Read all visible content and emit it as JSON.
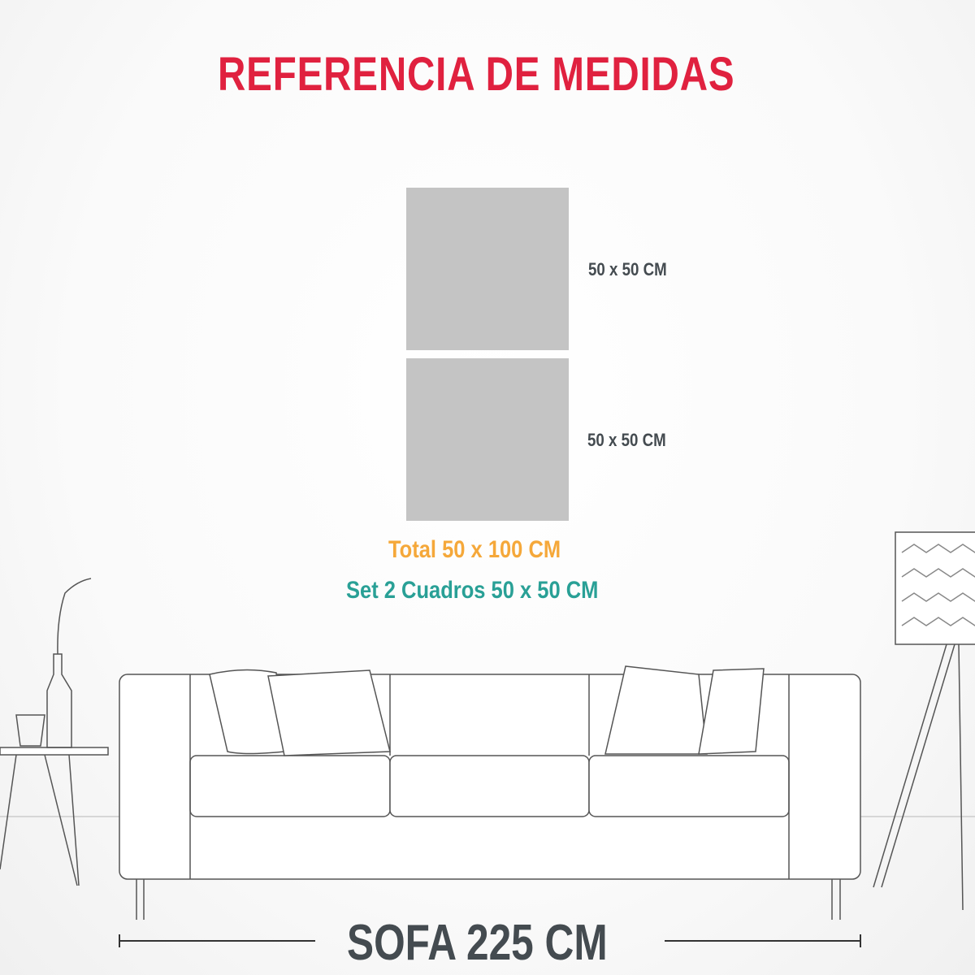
{
  "title": "REFERENCIA DE MEDIDAS",
  "panels": [
    {
      "label": "50 x 50 CM",
      "color": "#c4c4c4"
    },
    {
      "label": "50 x 50 CM",
      "color": "#c4c4c4"
    }
  ],
  "total": "Total 50 x 100 CM",
  "set": "Set 2 Cuadros 50 x 50 CM",
  "sofa": "SOFA 225 CM",
  "colors": {
    "title": "#e0213f",
    "total": "#f5a83a",
    "set": "#29a096",
    "dark": "#444b50"
  }
}
